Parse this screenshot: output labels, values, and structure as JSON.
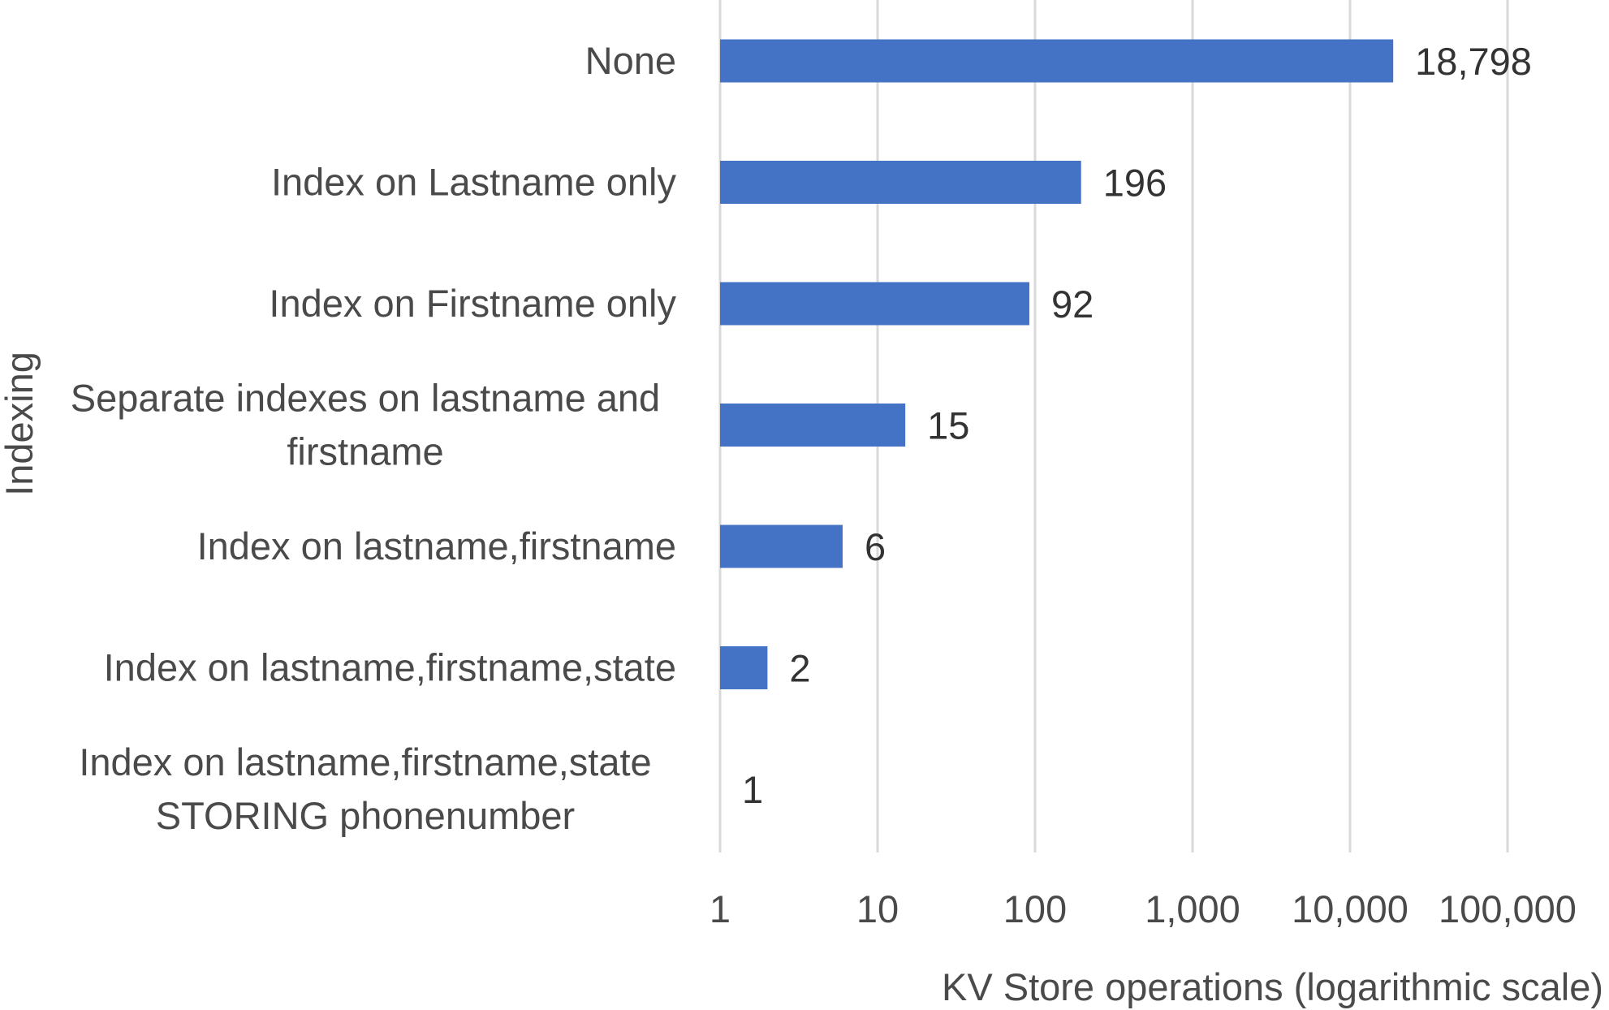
{
  "chart_data": {
    "type": "bar",
    "orientation": "horizontal",
    "x_scale": "log",
    "xlim": [
      1,
      100000
    ],
    "x_ticks": [
      "1",
      "10",
      "100",
      "1,000",
      "10,000",
      "100,000"
    ],
    "x_tick_values": [
      1,
      10,
      100,
      1000,
      10000,
      100000
    ],
    "xlabel": "KV Store operations (logarithmic scale)",
    "ylabel": "Indexing",
    "grid": "vertical",
    "bar_color": "#4472c4",
    "categories": [
      [
        "None"
      ],
      [
        "Index on Lastname only"
      ],
      [
        "Index on Firstname only"
      ],
      [
        "Separate indexes on lastname and",
        "firstname"
      ],
      [
        "Index on lastname,firstname"
      ],
      [
        "Index on lastname,firstname,state"
      ],
      [
        "Index on lastname,firstname,state",
        "STORING phonenumber"
      ]
    ],
    "values": [
      18798,
      196,
      92,
      15,
      6,
      2,
      1
    ],
    "data_labels": [
      "18,798",
      "196",
      "92",
      "15",
      "6",
      "2",
      "1"
    ]
  }
}
